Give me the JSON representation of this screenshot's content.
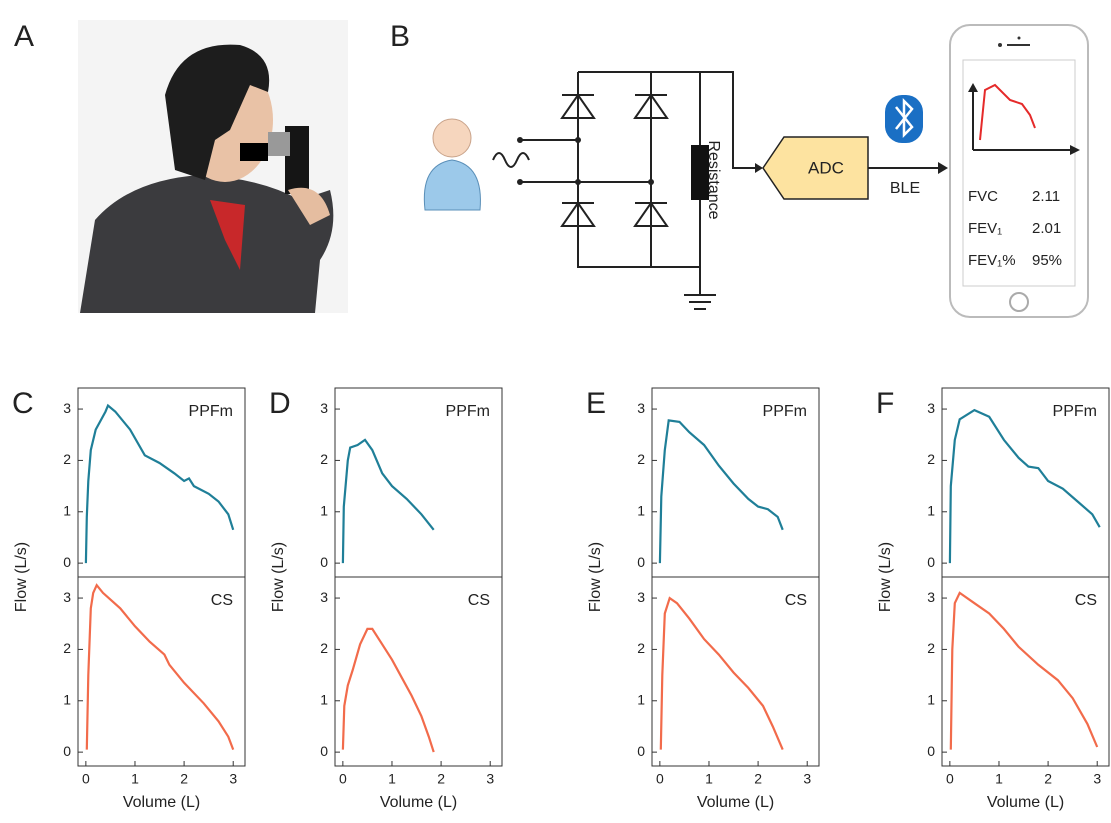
{
  "panel_labels": [
    "A",
    "B"
  ],
  "diagram": {
    "resistance": "Resistance",
    "adc": "ADC",
    "ble": "BLE",
    "phone_rows": [
      [
        "FVC",
        "2.11"
      ],
      [
        "FEV₁",
        "2.01"
      ],
      [
        "FEV₁%",
        "95%"
      ]
    ]
  },
  "chart_data": [
    {
      "type": "line",
      "label": "C",
      "xlabel": "Volume (L)",
      "ylabel": "Flow (L/s)",
      "xlim": [
        -0.16,
        3.24
      ],
      "xticks": [
        0,
        1,
        2,
        3
      ],
      "ylim": [
        -0.27,
        3.41
      ],
      "yticks": [
        0,
        1,
        2,
        3
      ],
      "series": [
        {
          "name": "PPFm",
          "color": "#1f7f98",
          "x": [
            0,
            0.02,
            0.05,
            0.1,
            0.2,
            0.4,
            0.45,
            0.6,
            0.9,
            1.2,
            1.5,
            1.8,
            2.0,
            2.1,
            2.2,
            2.5,
            2.7,
            2.9,
            3.0
          ],
          "values": [
            0,
            0.9,
            1.6,
            2.2,
            2.6,
            2.95,
            3.07,
            2.95,
            2.6,
            2.1,
            1.95,
            1.75,
            1.6,
            1.65,
            1.5,
            1.35,
            1.2,
            0.95,
            0.65
          ]
        },
        {
          "name": "CS",
          "color": "#f26b4b",
          "x": [
            0.02,
            0.05,
            0.1,
            0.15,
            0.22,
            0.35,
            0.7,
            1.0,
            1.3,
            1.6,
            1.7,
            2.0,
            2.4,
            2.7,
            2.9,
            3.0
          ],
          "values": [
            0.05,
            1.5,
            2.8,
            3.1,
            3.25,
            3.1,
            2.8,
            2.45,
            2.15,
            1.9,
            1.7,
            1.35,
            0.95,
            0.6,
            0.3,
            0.05
          ]
        }
      ]
    },
    {
      "type": "line",
      "label": "D",
      "xlabel": "Volume (L)",
      "ylabel": "Flow (L/s)",
      "xlim": [
        -0.16,
        3.24
      ],
      "xticks": [
        0,
        1,
        2,
        3
      ],
      "ylim": [
        -0.27,
        3.41
      ],
      "yticks": [
        0,
        1,
        2,
        3
      ],
      "series": [
        {
          "name": "PPFm",
          "color": "#1f7f98",
          "x": [
            0,
            0.02,
            0.1,
            0.15,
            0.3,
            0.45,
            0.6,
            0.8,
            1.0,
            1.3,
            1.6,
            1.85
          ],
          "values": [
            0,
            1.1,
            2.0,
            2.25,
            2.3,
            2.4,
            2.2,
            1.75,
            1.5,
            1.25,
            0.95,
            0.65
          ]
        },
        {
          "name": "CS",
          "color": "#f26b4b",
          "x": [
            0,
            0.03,
            0.1,
            0.2,
            0.35,
            0.5,
            0.6,
            0.8,
            1.0,
            1.2,
            1.4,
            1.6,
            1.75,
            1.85
          ],
          "values": [
            0.05,
            0.9,
            1.3,
            1.6,
            2.1,
            2.4,
            2.4,
            2.1,
            1.8,
            1.45,
            1.1,
            0.7,
            0.3,
            0
          ]
        }
      ]
    },
    {
      "type": "line",
      "label": "E",
      "xlabel": "Volume (L)",
      "ylabel": "Flow (L/s)",
      "xlim": [
        -0.16,
        3.24
      ],
      "xticks": [
        0,
        1,
        2,
        3
      ],
      "ylim": [
        -0.27,
        3.41
      ],
      "yticks": [
        0,
        1,
        2,
        3
      ],
      "series": [
        {
          "name": "PPFm",
          "color": "#1f7f98",
          "x": [
            0,
            0.03,
            0.1,
            0.18,
            0.4,
            0.6,
            0.9,
            1.2,
            1.5,
            1.8,
            2.0,
            2.2,
            2.4,
            2.5
          ],
          "values": [
            0,
            1.3,
            2.2,
            2.78,
            2.75,
            2.55,
            2.3,
            1.9,
            1.55,
            1.25,
            1.1,
            1.05,
            0.9,
            0.65
          ]
        },
        {
          "name": "CS",
          "color": "#f26b4b",
          "x": [
            0.02,
            0.05,
            0.1,
            0.2,
            0.35,
            0.6,
            0.9,
            1.2,
            1.5,
            1.8,
            2.1,
            2.3,
            2.5
          ],
          "values": [
            0.05,
            1.5,
            2.7,
            3.0,
            2.9,
            2.6,
            2.2,
            1.9,
            1.55,
            1.25,
            0.9,
            0.5,
            0.05
          ]
        }
      ]
    },
    {
      "type": "line",
      "label": "F",
      "xlabel": "Volume (L)",
      "ylabel": "Flow (L/s)",
      "xlim": [
        -0.16,
        3.24
      ],
      "xticks": [
        0,
        1,
        2,
        3
      ],
      "ylim": [
        -0.27,
        3.41
      ],
      "yticks": [
        0,
        1,
        2,
        3
      ],
      "series": [
        {
          "name": "PPFm",
          "color": "#1f7f98",
          "x": [
            0,
            0.02,
            0.1,
            0.2,
            0.5,
            0.8,
            1.1,
            1.4,
            1.6,
            1.8,
            2.0,
            2.3,
            2.6,
            2.9,
            3.05
          ],
          "values": [
            0,
            1.5,
            2.4,
            2.8,
            2.98,
            2.85,
            2.4,
            2.05,
            1.88,
            1.85,
            1.6,
            1.45,
            1.2,
            0.95,
            0.7
          ]
        },
        {
          "name": "CS",
          "color": "#f26b4b",
          "x": [
            0.02,
            0.05,
            0.1,
            0.2,
            0.5,
            0.8,
            1.1,
            1.4,
            1.8,
            2.2,
            2.5,
            2.8,
            3.0
          ],
          "values": [
            0.05,
            2.0,
            2.9,
            3.1,
            2.9,
            2.7,
            2.4,
            2.05,
            1.7,
            1.4,
            1.05,
            0.55,
            0.1
          ]
        }
      ]
    }
  ]
}
